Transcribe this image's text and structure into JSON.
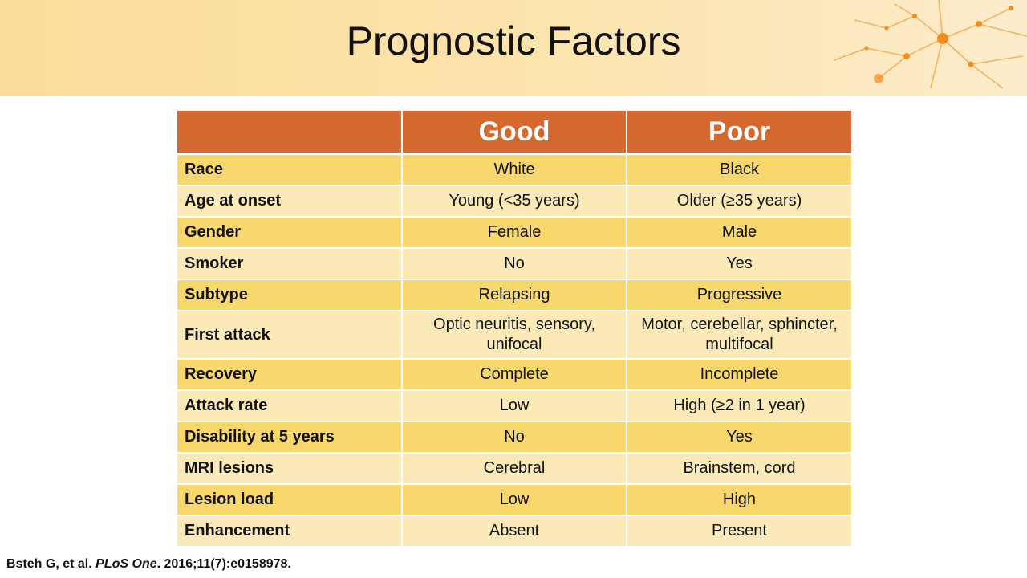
{
  "slide": {
    "title": "Prognostic Factors"
  },
  "table": {
    "headers": [
      "",
      "Good",
      "Poor"
    ],
    "rows": [
      {
        "factor": "Race",
        "good": "White",
        "poor": "Black"
      },
      {
        "factor": "Age at onset",
        "good": "Young (<35 years)",
        "poor": "Older (≥35 years)"
      },
      {
        "factor": "Gender",
        "good": "Female",
        "poor": "Male"
      },
      {
        "factor": "Smoker",
        "good": "No",
        "poor": "Yes"
      },
      {
        "factor": "Subtype",
        "good": "Relapsing",
        "poor": "Progressive"
      },
      {
        "factor": "First attack",
        "good": "Optic neuritis, sensory, unifocal",
        "poor": "Motor, cerebellar, sphincter, multifocal"
      },
      {
        "factor": "Recovery",
        "good": "Complete",
        "poor": "Incomplete"
      },
      {
        "factor": "Attack rate",
        "good": "Low",
        "poor": "High (≥2 in 1 year)"
      },
      {
        "factor": "Disability at 5 years",
        "good": "No",
        "poor": "Yes"
      },
      {
        "factor": "MRI lesions",
        "good": "Cerebral",
        "poor": "Brainstem, cord"
      },
      {
        "factor": "Lesion load",
        "good": "Low",
        "poor": "High"
      },
      {
        "factor": "Enhancement",
        "good": "Absent",
        "poor": "Present"
      }
    ]
  },
  "citation": {
    "authors": "Bsteh G, et al.",
    "journal": "PLoS One",
    "details": ". 2016;11(7):e0158978."
  },
  "colors": {
    "header_band": "#fbdc9a",
    "table_header": "#d4682e",
    "row_odd": "#f8d86c",
    "row_even": "#fbeab8"
  },
  "decoration": {
    "top_right_image": "neuron-network-illustration"
  }
}
